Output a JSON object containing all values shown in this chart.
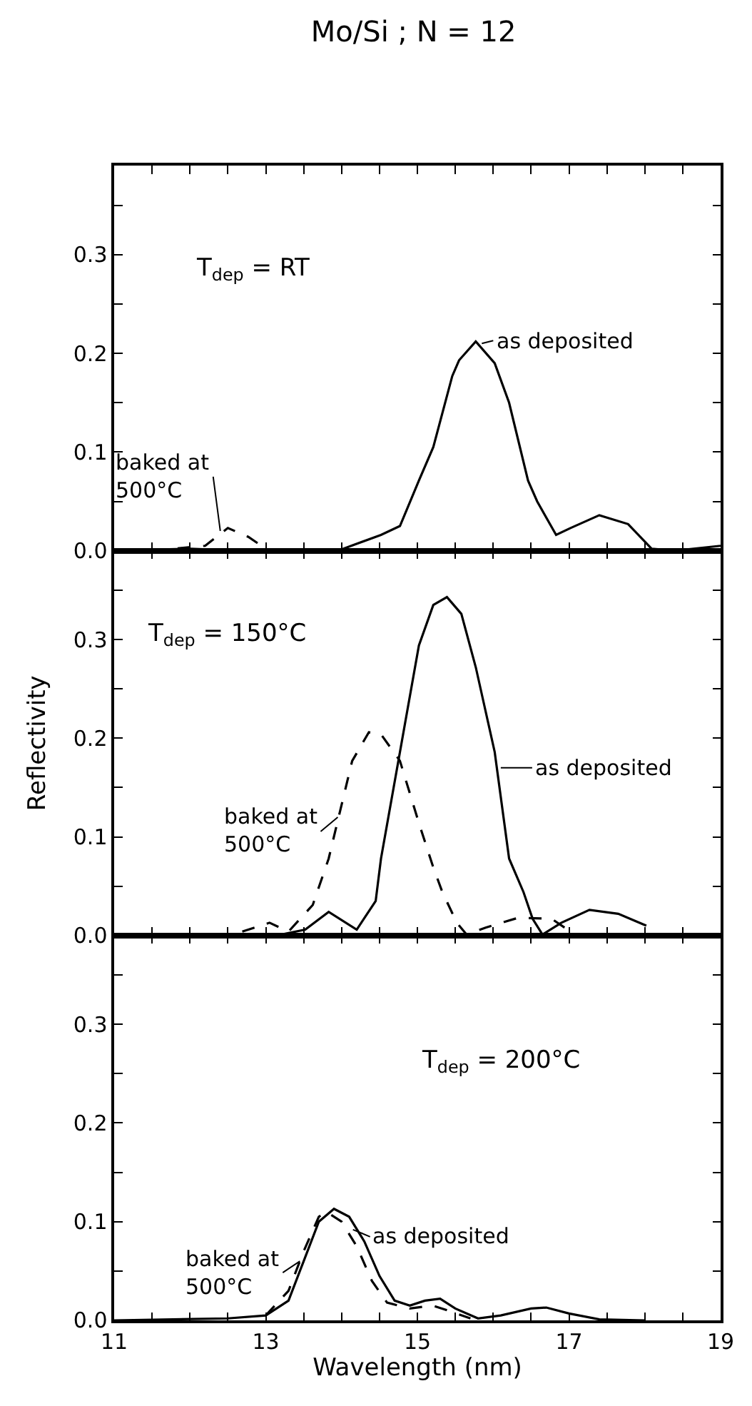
{
  "chart_data": [
    {
      "type": "line",
      "title": "Mo/Si ; N = 12",
      "tick_labels": "y",
      "xlim": [
        11,
        19
      ],
      "ylim": [
        0,
        0.39
      ],
      "xticks": [
        11,
        {
          "value": 11.5,
          "label": null
        },
        {
          "value": 12,
          "label": null
        },
        {
          "value": 12.5,
          "label": null
        },
        13,
        {
          "value": 13.5,
          "label": null
        },
        {
          "value": 14,
          "label": null
        },
        {
          "value": 14.5,
          "label": null
        },
        15,
        {
          "value": 15.5,
          "label": null
        },
        {
          "value": 16,
          "label": null
        },
        {
          "value": 16.5,
          "label": null
        },
        17,
        {
          "value": 17.5,
          "label": null
        },
        {
          "value": 18,
          "label": null
        },
        {
          "value": 18.5,
          "label": null
        },
        19
      ],
      "yticks": [
        "0.0",
        {
          "value": 0.05,
          "label": null
        },
        0.1,
        {
          "value": 0.15,
          "label": null
        },
        0.2,
        {
          "value": 0.25,
          "label": null
        },
        0.3,
        {
          "value": 0.35,
          "label": null
        }
      ],
      "series": [
        {
          "color": "#000000",
          "line_style": "solid",
          "x": [
            11,
            12.0,
            12.64,
            13.95,
            14.52,
            14.77,
            15.02,
            15.21,
            15.46,
            15.55,
            15.77,
            16.02,
            16.21,
            16.46,
            16.58,
            16.83,
            17.02,
            17.4,
            17.78,
            18.09,
            18.4,
            19
          ],
          "values": [
            0,
            0.002,
            0,
            0,
            0.016,
            0.025,
            0.071,
            0.105,
            0.177,
            0.193,
            0.212,
            0.19,
            0.15,
            0.071,
            0.05,
            0.016,
            0.023,
            0.036,
            0.027,
            0.002,
            0,
            0.005
          ]
        },
        {
          "color": "#000000",
          "line_style": "dashed",
          "x": [
            11.5,
            12.2,
            12.5,
            12.77,
            13.02
          ],
          "values": [
            0,
            0.005,
            0.023,
            0.014,
            0.001
          ]
        }
      ],
      "annotations": [
        "T$_{dep}$ = RT",
        {
          "text": "as deposited",
          "x": 15.85,
          "y": 0.21
        },
        {
          "text": "baked at\n500°C",
          "x": 12.4,
          "y": 0.02
        }
      ]
    },
    {
      "type": "line",
      "tick_labels": "y",
      "ylabel": "Reflectivity",
      "xlim": [
        11,
        19
      ],
      "ylim": [
        0,
        0.39
      ],
      "xticks": [
        11,
        {
          "value": 11.5,
          "label": null
        },
        {
          "value": 12,
          "label": null
        },
        {
          "value": 12.5,
          "label": null
        },
        13,
        {
          "value": 13.5,
          "label": null
        },
        {
          "value": 14,
          "label": null
        },
        {
          "value": 14.5,
          "label": null
        },
        15,
        {
          "value": 15.5,
          "label": null
        },
        {
          "value": 16,
          "label": null
        },
        {
          "value": 16.5,
          "label": null
        },
        17,
        {
          "value": 17.5,
          "label": null
        },
        {
          "value": 18,
          "label": null
        },
        {
          "value": 18.5,
          "label": null
        },
        19
      ],
      "yticks": [
        "0.0",
        {
          "value": 0.05,
          "label": null
        },
        0.1,
        {
          "value": 0.15,
          "label": null
        },
        0.2,
        {
          "value": 0.25,
          "label": null
        },
        0.3,
        {
          "value": 0.35,
          "label": null
        }
      ],
      "series": [
        {
          "color": "#000000",
          "line_style": "solid",
          "x": [
            13.14,
            13.52,
            13.83,
            14.2,
            14.45,
            14.52,
            14.77,
            15.02,
            15.21,
            15.39,
            15.58,
            15.77,
            16.02,
            16.21,
            16.4,
            16.52,
            16.65,
            16.9,
            17.27,
            17.65,
            18.02
          ],
          "values": [
            0,
            0.006,
            0.024,
            0.006,
            0.035,
            0.078,
            0.186,
            0.294,
            0.335,
            0.343,
            0.326,
            0.272,
            0.186,
            0.078,
            0.044,
            0.017,
            0.001,
            0.013,
            0.026,
            0.022,
            0.01
          ]
        },
        {
          "color": "#000000",
          "line_style": "dashed",
          "x": [
            12.69,
            13.05,
            13.3,
            13.62,
            13.83,
            14.14,
            14.36,
            14.52,
            14.77,
            15.02,
            15.21,
            15.33,
            15.52,
            15.65,
            15.9,
            16.33,
            16.77,
            17.02
          ],
          "values": [
            0.004,
            0.013,
            0.004,
            0.031,
            0.078,
            0.177,
            0.206,
            0.204,
            0.177,
            0.114,
            0.069,
            0.044,
            0.013,
            0.001,
            0.008,
            0.018,
            0.017,
            0.004
          ]
        }
      ],
      "annotations": [
        "T$_{dep}$ = 150°C",
        {
          "text": "as deposited",
          "x": 16.1,
          "y": 0.17
        },
        {
          "text": "baked at\n500°C",
          "x": 13.95,
          "y": 0.12
        }
      ]
    },
    {
      "type": "line",
      "xlabel": "Wavelength (nm)",
      "xlim": [
        11,
        19
      ],
      "ylim": [
        0,
        0.39
      ],
      "xticks": [
        11,
        {
          "value": 11.5,
          "label": null
        },
        {
          "value": 12,
          "label": null
        },
        {
          "value": 12.5,
          "label": null
        },
        13,
        {
          "value": 13.5,
          "label": null
        },
        {
          "value": 14,
          "label": null
        },
        {
          "value": 14.5,
          "label": null
        },
        15,
        {
          "value": 15.5,
          "label": null
        },
        {
          "value": 16,
          "label": null
        },
        {
          "value": 16.5,
          "label": null
        },
        17,
        {
          "value": 17.5,
          "label": null
        },
        {
          "value": 18,
          "label": null
        },
        {
          "value": 18.5,
          "label": null
        },
        19
      ],
      "yticks": [
        "0.0",
        {
          "value": 0.05,
          "label": null
        },
        0.1,
        {
          "value": 0.15,
          "label": null
        },
        0.2,
        {
          "value": 0.25,
          "label": null
        },
        0.3,
        {
          "value": 0.35,
          "label": null
        }
      ],
      "series": [
        {
          "color": "#000000",
          "line_style": "solid",
          "x": [
            11,
            12.5,
            13,
            13.3,
            13.5,
            13.7,
            13.9,
            14.1,
            14.3,
            14.5,
            14.7,
            14.9,
            15.1,
            15.3,
            15.5,
            15.8,
            16.1,
            16.5,
            16.7,
            17.0,
            17.4,
            18
          ],
          "values": [
            0,
            0.002,
            0.005,
            0.02,
            0.06,
            0.1,
            0.113,
            0.105,
            0.08,
            0.045,
            0.02,
            0.015,
            0.02,
            0.022,
            0.012,
            0.002,
            0.005,
            0.012,
            0.013,
            0.007,
            0.001,
            0
          ]
        },
        {
          "color": "#000000",
          "line_style": "dashed",
          "x": [
            13.0,
            13.3,
            13.5,
            13.7,
            13.8,
            14.0,
            14.2,
            14.4,
            14.6,
            14.9,
            15.2,
            15.4,
            15.7
          ],
          "values": [
            0.005,
            0.03,
            0.07,
            0.105,
            0.11,
            0.1,
            0.075,
            0.04,
            0.018,
            0.012,
            0.015,
            0.01,
            0.002
          ]
        }
      ],
      "annotations": [
        "T$_{dep}$ = 200°C",
        {
          "text": "as deposited",
          "x": 14.15,
          "y": 0.092
        },
        {
          "text": "baked at\n500°C",
          "x": 13.45,
          "y": 0.06
        }
      ]
    }
  ]
}
